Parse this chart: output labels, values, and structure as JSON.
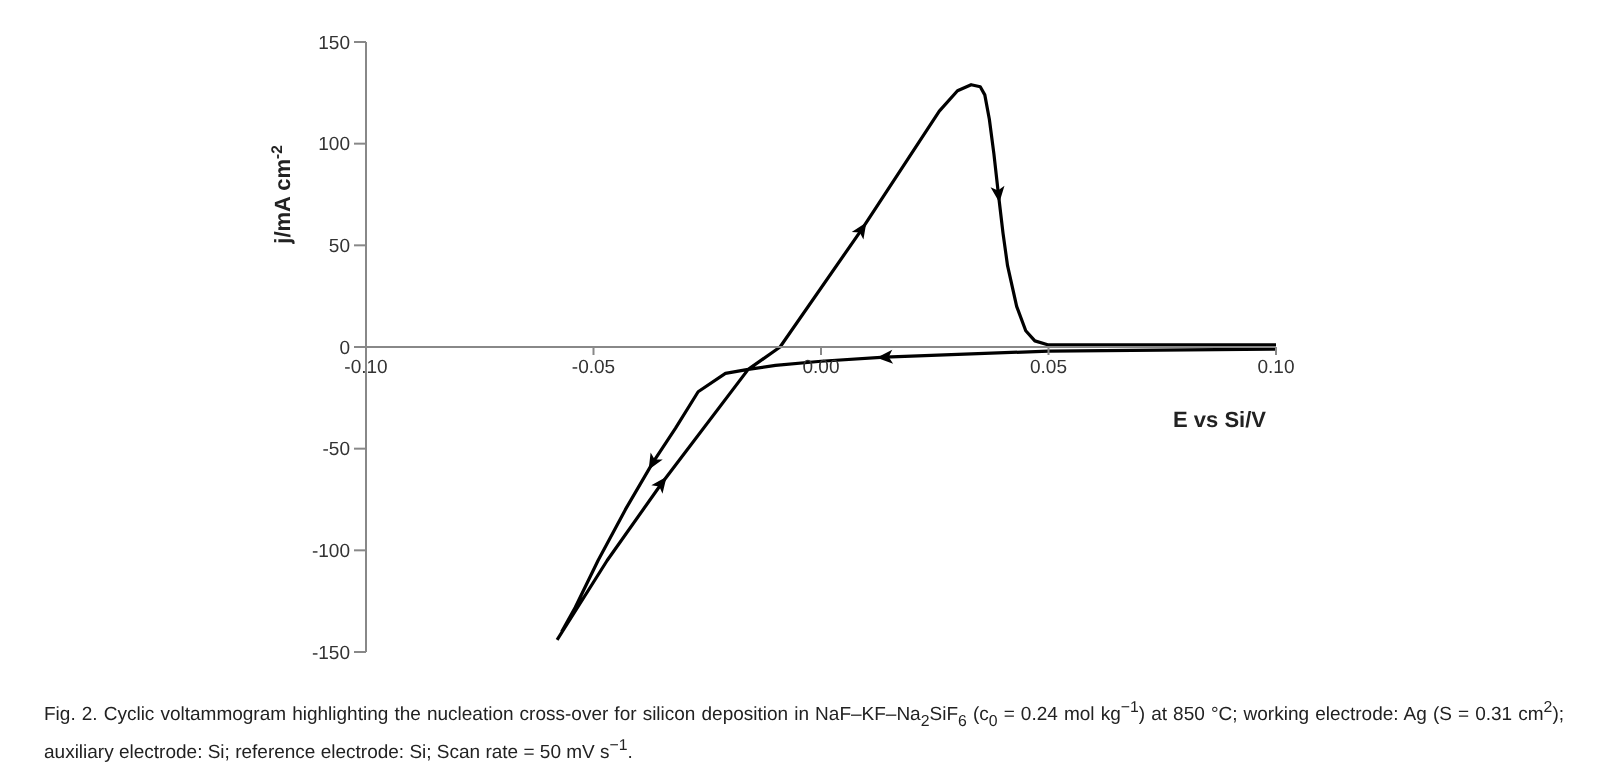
{
  "chart_data": {
    "type": "line",
    "xlabel": "E vs Si/V",
    "ylabel": "j/mA cm$^{-2}$",
    "annotations": [
      "Fig. 2. Cyclic voltammogram highlighting the nucleation cross-over for silicon deposition in NaF–KF–Na$_{2}$SiF$_{6}$ (c$_{0}$ = 0.24 mol kg$^{−1}$) at 850 °C; working electrode: Ag (S = 0.31 cm$^{2}$); auxiliary electrode: Si; reference electrode: Si; Scan rate = 50 mV s$^{−1}$."
    ],
    "xlim": [
      -0.1,
      0.1
    ],
    "xticks": [
      {
        "value": -0.1,
        "label": "-0.10"
      },
      {
        "value": -0.05,
        "label": "-0.05"
      },
      {
        "value": 0,
        "label": "0.00"
      },
      {
        "value": 0.05,
        "label": "0.05"
      },
      {
        "value": 0.1,
        "label": "0.10"
      }
    ],
    "ylim": [
      -150,
      150
    ],
    "yticks": [
      -150,
      -100,
      -50,
      0,
      50,
      100,
      150
    ],
    "grid": false,
    "legend": false,
    "marker": "none",
    "line_style": "solid",
    "series": [
      {
        "color": "#000000",
        "x": [
          -0.058,
          -0.047,
          -0.035,
          -0.016,
          -0.009,
          0.009,
          0.026,
          0.03,
          0.033,
          0.035,
          0.036,
          0.037,
          0.038,
          0.039,
          0.04,
          0.041,
          0.043,
          0.045,
          0.047,
          0.05,
          0.1,
          0.1,
          0.05,
          0.014,
          0.0,
          -0.01,
          -0.016,
          -0.021,
          -0.027,
          -0.032,
          -0.037,
          -0.043,
          -0.049,
          -0.054,
          -0.057
        ],
        "values": [
          -144,
          -105,
          -67,
          -11,
          0,
          58,
          116,
          126,
          129,
          128,
          124,
          112,
          95,
          75,
          56,
          40,
          20,
          8,
          3,
          1,
          1,
          -1,
          -2,
          -5,
          -7,
          -9,
          -11,
          -13,
          -22,
          -40,
          -57,
          -80,
          -105,
          -128,
          -140
        ]
      }
    ]
  }
}
